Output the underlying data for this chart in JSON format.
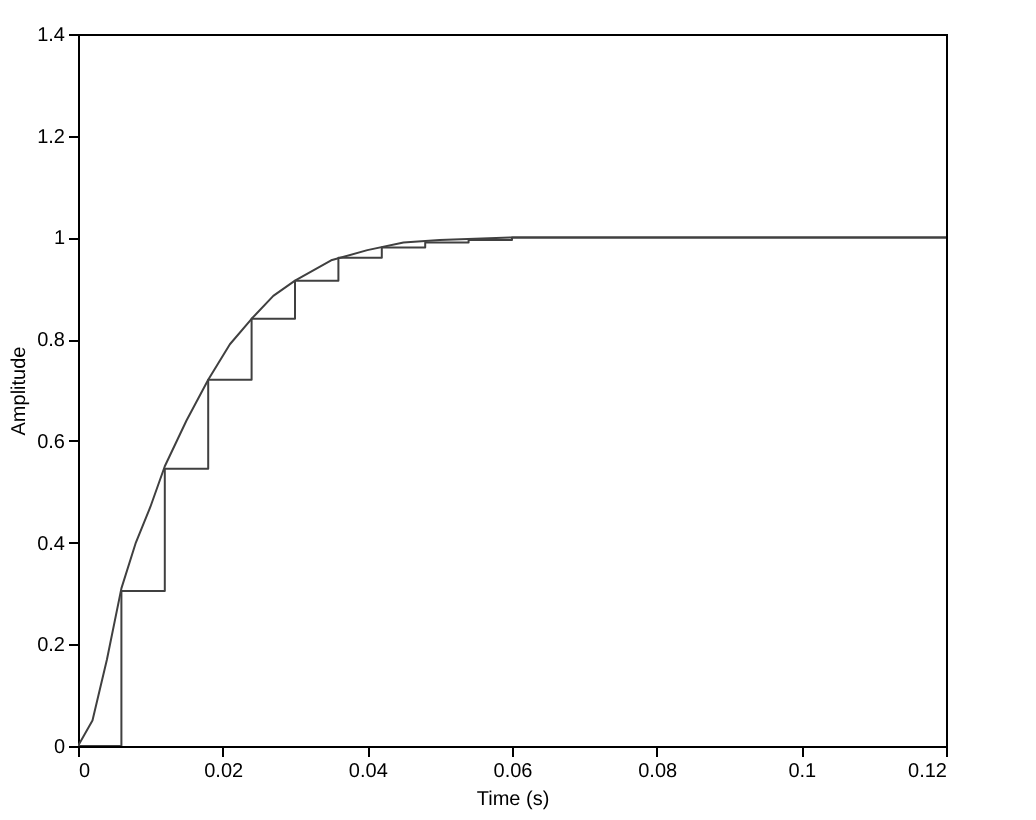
{
  "chart_data": {
    "type": "line",
    "xlabel": "Time (s)",
    "ylabel": "Amplitude",
    "xlim": [
      0,
      0.12
    ],
    "ylim": [
      0,
      1.4
    ],
    "xticks": [
      0,
      0.02,
      0.04,
      0.06,
      0.08,
      0.1,
      0.12
    ],
    "yticks": [
      0,
      0.2,
      0.4,
      0.6,
      0.8,
      1,
      1.2,
      1.4
    ],
    "grid": false,
    "series": [
      {
        "color": "#404040",
        "x": [
          0,
          0.002,
          0.004,
          0.006,
          0.008,
          0.01,
          0.012,
          0.015,
          0.018,
          0.021,
          0.024,
          0.027,
          0.03,
          0.035,
          0.04,
          0.045,
          0.05,
          0.06,
          0.07,
          0.08,
          0.1,
          0.12
        ],
        "values": [
          0,
          0.05,
          0.17,
          0.31,
          0.4,
          0.47,
          0.55,
          0.64,
          0.72,
          0.79,
          0.84,
          0.885,
          0.915,
          0.955,
          0.975,
          0.99,
          0.995,
          1,
          1,
          1,
          1,
          1
        ]
      },
      {
        "type": "step",
        "color": "#404040",
        "x": [
          0,
          0.006,
          0.012,
          0.018,
          0.024,
          0.03,
          0.036,
          0.042,
          0.048,
          0.054,
          0.06,
          0.066,
          0.072,
          0.078,
          0.084,
          0.09,
          0.096,
          0.102,
          0.108,
          0.114,
          0.12
        ],
        "values": [
          0,
          0.305,
          0.545,
          0.72,
          0.84,
          0.915,
          0.96,
          0.98,
          0.99,
          0.995,
          1,
          1,
          1,
          1,
          1,
          1,
          1,
          1,
          1,
          1,
          1
        ]
      }
    ]
  }
}
